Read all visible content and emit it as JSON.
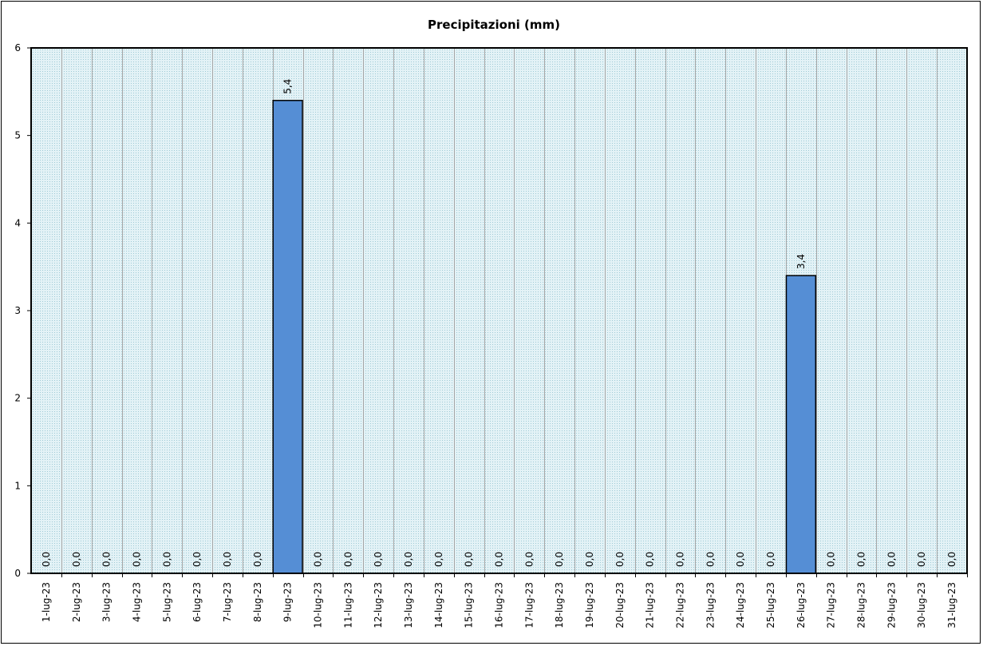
{
  "chart_data": {
    "type": "bar",
    "title": "Precipitazioni  (mm)",
    "xlabel": "",
    "ylabel": "",
    "ylim": [
      0,
      6
    ],
    "yticks": [
      "0",
      "1",
      "2",
      "3",
      "4",
      "5",
      "6"
    ],
    "grid": true,
    "legend": "none",
    "categories": [
      "1-lug-23",
      "2-lug-23",
      "3-lug-23",
      "4-lug-23",
      "5-lug-23",
      "6-lug-23",
      "7-lug-23",
      "8-lug-23",
      "9-lug-23",
      "10-lug-23",
      "11-lug-23",
      "12-lug-23",
      "13-lug-23",
      "14-lug-23",
      "15-lug-23",
      "16-lug-23",
      "17-lug-23",
      "18-lug-23",
      "19-lug-23",
      "20-lug-23",
      "21-lug-23",
      "22-lug-23",
      "23-lug-23",
      "24-lug-23",
      "25-lug-23",
      "26-lug-23",
      "27-lug-23",
      "28-lug-23",
      "29-lug-23",
      "30-lug-23",
      "31-lug-23"
    ],
    "values": [
      0,
      0,
      0,
      0,
      0,
      0,
      0,
      0,
      5.4,
      0,
      0,
      0,
      0,
      0,
      0,
      0,
      0,
      0,
      0,
      0,
      0,
      0,
      0,
      0,
      0,
      3.4,
      0,
      0,
      0,
      0,
      0
    ],
    "data_labels": [
      "0,0",
      "0,0",
      "0,0",
      "0,0",
      "0,0",
      "0,0",
      "0,0",
      "0,0",
      "5,4",
      "0,0",
      "0,0",
      "0,0",
      "0,0",
      "0,0",
      "0,0",
      "0,0",
      "0,0",
      "0,0",
      "0,0",
      "0,0",
      "0,0",
      "0,0",
      "0,0",
      "0,0",
      "0,0",
      "3,4",
      "0,0",
      "0,0",
      "0,0",
      "0,0",
      "0,0"
    ],
    "colors": {
      "bar_fill": "#558ed5",
      "bar_stroke": "#000000",
      "plot_bg": "#daeef3",
      "gridline": "#a6a6a6"
    }
  }
}
